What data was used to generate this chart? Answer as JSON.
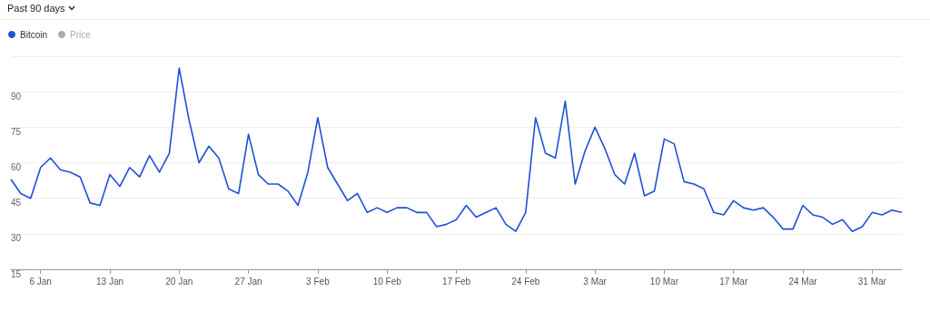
{
  "chart_data": {
    "type": "line",
    "title": "Past 90 days",
    "categories": [
      null,
      null,
      null,
      "6 Jan",
      null,
      null,
      null,
      null,
      null,
      null,
      "13 Jan",
      null,
      null,
      null,
      null,
      null,
      null,
      "20 Jan",
      null,
      null,
      null,
      null,
      null,
      null,
      "27 Jan",
      null,
      null,
      null,
      null,
      null,
      null,
      "3 Feb",
      null,
      null,
      null,
      null,
      null,
      null,
      "10 Feb",
      null,
      null,
      null,
      null,
      null,
      null,
      "17 Feb",
      null,
      null,
      null,
      null,
      null,
      null,
      "24 Feb",
      null,
      null,
      null,
      null,
      null,
      null,
      "3 Mar",
      null,
      null,
      null,
      null,
      null,
      null,
      "10 Mar",
      null,
      null,
      null,
      null,
      null,
      null,
      "17 Mar",
      null,
      null,
      null,
      null,
      null,
      null,
      "24 Mar",
      null,
      null,
      null,
      null,
      null,
      null,
      "31 Mar",
      null,
      null,
      null
    ],
    "series": [
      {
        "name": "Bitcoin",
        "color": "#1f50d8",
        "values": [
          53,
          47,
          45,
          58,
          62,
          57,
          56,
          54,
          43,
          42,
          55,
          50,
          58,
          54,
          63,
          56,
          64,
          100,
          78,
          60,
          67,
          62,
          49,
          47,
          72,
          55,
          51,
          51,
          48,
          42,
          56,
          79,
          58,
          51,
          44,
          47,
          39,
          41,
          39,
          41,
          41,
          39,
          39,
          33,
          34,
          36,
          42,
          37,
          39,
          41,
          34,
          31,
          39,
          79,
          64,
          62,
          86,
          51,
          65,
          75,
          66,
          55,
          51,
          64,
          46,
          48,
          70,
          68,
          52,
          51,
          49,
          39,
          38,
          44,
          41,
          40,
          41,
          37,
          32,
          32,
          42,
          38,
          37,
          34,
          36,
          31,
          33,
          39,
          38,
          40,
          39
        ]
      },
      {
        "name": "Price",
        "color": "#aaaaaa",
        "values": [
          null,
          null,
          null,
          null,
          null,
          null,
          null,
          null,
          null,
          null,
          null,
          null,
          null,
          null,
          null,
          null,
          null,
          null,
          null,
          null,
          null,
          null,
          null,
          null,
          null,
          null,
          null,
          null,
          null,
          null,
          null,
          null,
          null,
          null,
          null,
          null,
          null,
          null,
          null,
          null,
          null,
          null,
          null,
          null,
          null,
          null,
          null,
          null,
          null,
          null,
          null,
          null,
          null,
          null,
          null,
          null,
          null,
          null,
          null,
          null,
          null,
          null,
          null,
          null,
          null,
          null,
          null,
          null,
          null,
          null,
          null,
          null,
          null,
          null,
          null,
          null,
          null,
          null,
          null,
          null,
          null,
          null,
          null,
          null,
          null,
          null,
          null,
          null,
          null,
          null,
          null
        ]
      }
    ],
    "ylim": [
      15,
      105
    ],
    "yticks": [
      15,
      30,
      45,
      60,
      75,
      90,
      {
        "value": 105,
        "label": null
      }
    ],
    "grid": "y",
    "legend": "top left",
    "marker": "none",
    "line_style": "solid"
  }
}
